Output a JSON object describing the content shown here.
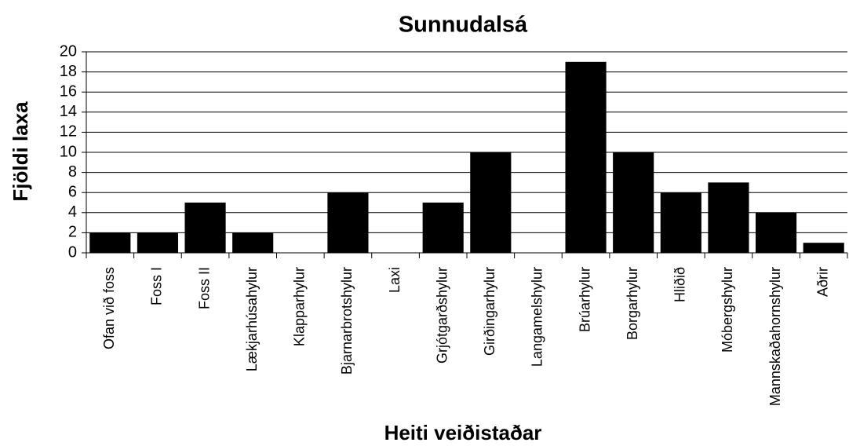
{
  "chart_data": {
    "type": "bar",
    "title": "Sunnudalsá",
    "x_label": "Heiti veiðistaðar",
    "y_label": "Fjöldi laxa",
    "categories": [
      "Ofan við foss",
      "Foss I",
      "Foss II",
      "Lækjarhúsahylur",
      "Klapparhylur",
      "Bjarnarbrotshylur",
      "Laxi",
      "Grjótgarðshylur",
      "Girðingarhylur",
      "Langamelshylur",
      "Brúarhylur",
      "Borgarhylur",
      "Hliðið",
      "Móbergshylur",
      "Mannskaðahornshylur",
      "Aðrir"
    ],
    "values": [
      2,
      2,
      5,
      2,
      0,
      6,
      0,
      5,
      10,
      0,
      19,
      10,
      6,
      7,
      4,
      1
    ],
    "color": "#000000",
    "ylim": [
      0,
      20
    ],
    "yticks": [
      0,
      2,
      4,
      6,
      8,
      10,
      12,
      14,
      16,
      18,
      20
    ],
    "grid": true
  }
}
